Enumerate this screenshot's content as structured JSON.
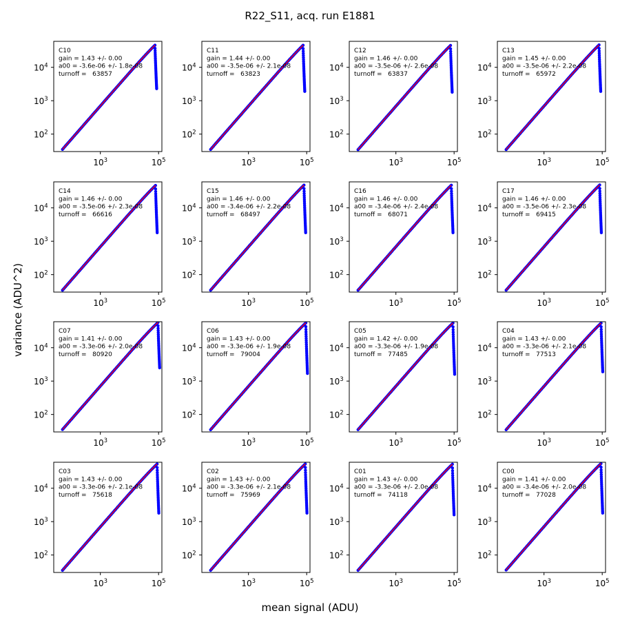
{
  "figure": {
    "suptitle": "R22_S11, acq. run E1881",
    "xlabel": "mean signal (ADU)",
    "ylabel": "variance (ADU^2)"
  },
  "chart_data": {
    "type": "scatter",
    "xscale": "log",
    "yscale": "log",
    "xlim": [
      25,
      130000
    ],
    "ylim": [
      30,
      60000
    ],
    "x_ticks": [
      1000,
      100000
    ],
    "y_ticks": [
      100,
      1000,
      10000
    ],
    "tick_label_base": "10",
    "x_tick_exponents": [
      "3",
      "5"
    ],
    "y_tick_exponents": [
      "2",
      "3",
      "4"
    ],
    "colors": {
      "data": "#0000ff",
      "fit": "#ff0000",
      "axes": "#000000"
    },
    "panels": [
      {
        "amp": "C10",
        "gain": "gain = 1.43 +/- 0.00",
        "a00": "a00 = -3.6e-06 +/- 1.8e-08",
        "turnoff_text": "turnoff =   63857",
        "turnoff": 63857,
        "end_variance": 2300
      },
      {
        "amp": "C11",
        "gain": "gain = 1.44 +/- 0.00",
        "a00": "a00 = -3.5e-06 +/- 2.1e-08",
        "turnoff_text": "turnoff =   63823",
        "turnoff": 63823,
        "end_variance": 1900
      },
      {
        "amp": "C12",
        "gain": "gain = 1.46 +/- 0.00",
        "a00": "a00 = -3.5e-06 +/- 2.6e-08",
        "turnoff_text": "turnoff =   63837",
        "turnoff": 63837,
        "end_variance": 1800
      },
      {
        "amp": "C13",
        "gain": "gain = 1.45 +/- 0.00",
        "a00": "a00 = -3.5e-06 +/- 2.2e-08",
        "turnoff_text": "turnoff =   65972",
        "turnoff": 65972,
        "end_variance": 1900
      },
      {
        "amp": "C14",
        "gain": "gain = 1.46 +/- 0.00",
        "a00": "a00 = -3.5e-06 +/- 2.3e-08",
        "turnoff_text": "turnoff =   66616",
        "turnoff": 66616,
        "end_variance": 1800
      },
      {
        "amp": "C15",
        "gain": "gain = 1.46 +/- 0.00",
        "a00": "a00 = -3.4e-06 +/- 2.2e-08",
        "turnoff_text": "turnoff =   68497",
        "turnoff": 68497,
        "end_variance": 1800
      },
      {
        "amp": "C16",
        "gain": "gain = 1.46 +/- 0.00",
        "a00": "a00 = -3.4e-06 +/- 2.4e-08",
        "turnoff_text": "turnoff =   68071",
        "turnoff": 68071,
        "end_variance": 1800
      },
      {
        "amp": "C17",
        "gain": "gain = 1.46 +/- 0.00",
        "a00": "a00 = -3.5e-06 +/- 2.3e-08",
        "turnoff_text": "turnoff =   69415",
        "turnoff": 69415,
        "end_variance": 1800
      },
      {
        "amp": "C07",
        "gain": "gain = 1.41 +/- 0.00",
        "a00": "a00 = -3.3e-06 +/- 2.0e-08",
        "turnoff_text": "turnoff =   80920",
        "turnoff": 80920,
        "end_variance": 2500
      },
      {
        "amp": "C06",
        "gain": "gain = 1.43 +/- 0.00",
        "a00": "a00 = -3.3e-06 +/- 1.9e-08",
        "turnoff_text": "turnoff =   79004",
        "turnoff": 79004,
        "end_variance": 1700
      },
      {
        "amp": "C05",
        "gain": "gain = 1.42 +/- 0.00",
        "a00": "a00 = -3.3e-06 +/- 1.9e-08",
        "turnoff_text": "turnoff =   77485",
        "turnoff": 77485,
        "end_variance": 1600
      },
      {
        "amp": "C04",
        "gain": "gain = 1.43 +/- 0.00",
        "a00": "a00 = -3.3e-06 +/- 2.1e-08",
        "turnoff_text": "turnoff =   77513",
        "turnoff": 77513,
        "end_variance": 1900
      },
      {
        "amp": "C03",
        "gain": "gain = 1.43 +/- 0.00",
        "a00": "a00 = -3.3e-06 +/- 2.1e-08",
        "turnoff_text": "turnoff =   75618",
        "turnoff": 75618,
        "end_variance": 1800
      },
      {
        "amp": "C02",
        "gain": "gain = 1.43 +/- 0.00",
        "a00": "a00 = -3.3e-06 +/- 2.1e-08",
        "turnoff_text": "turnoff =   75969",
        "turnoff": 75969,
        "end_variance": 1800
      },
      {
        "amp": "C01",
        "gain": "gain = 1.43 +/- 0.00",
        "a00": "a00 = -3.3e-06 +/- 2.0e-08",
        "turnoff_text": "turnoff =   74118",
        "turnoff": 74118,
        "end_variance": 1600
      },
      {
        "amp": "C00",
        "gain": "gain = 1.41 +/- 0.00",
        "a00": "a00 = -3.4e-06 +/- 2.0e-08",
        "turnoff_text": "turnoff =   77028",
        "turnoff": 77028,
        "end_variance": 1800
      }
    ]
  }
}
